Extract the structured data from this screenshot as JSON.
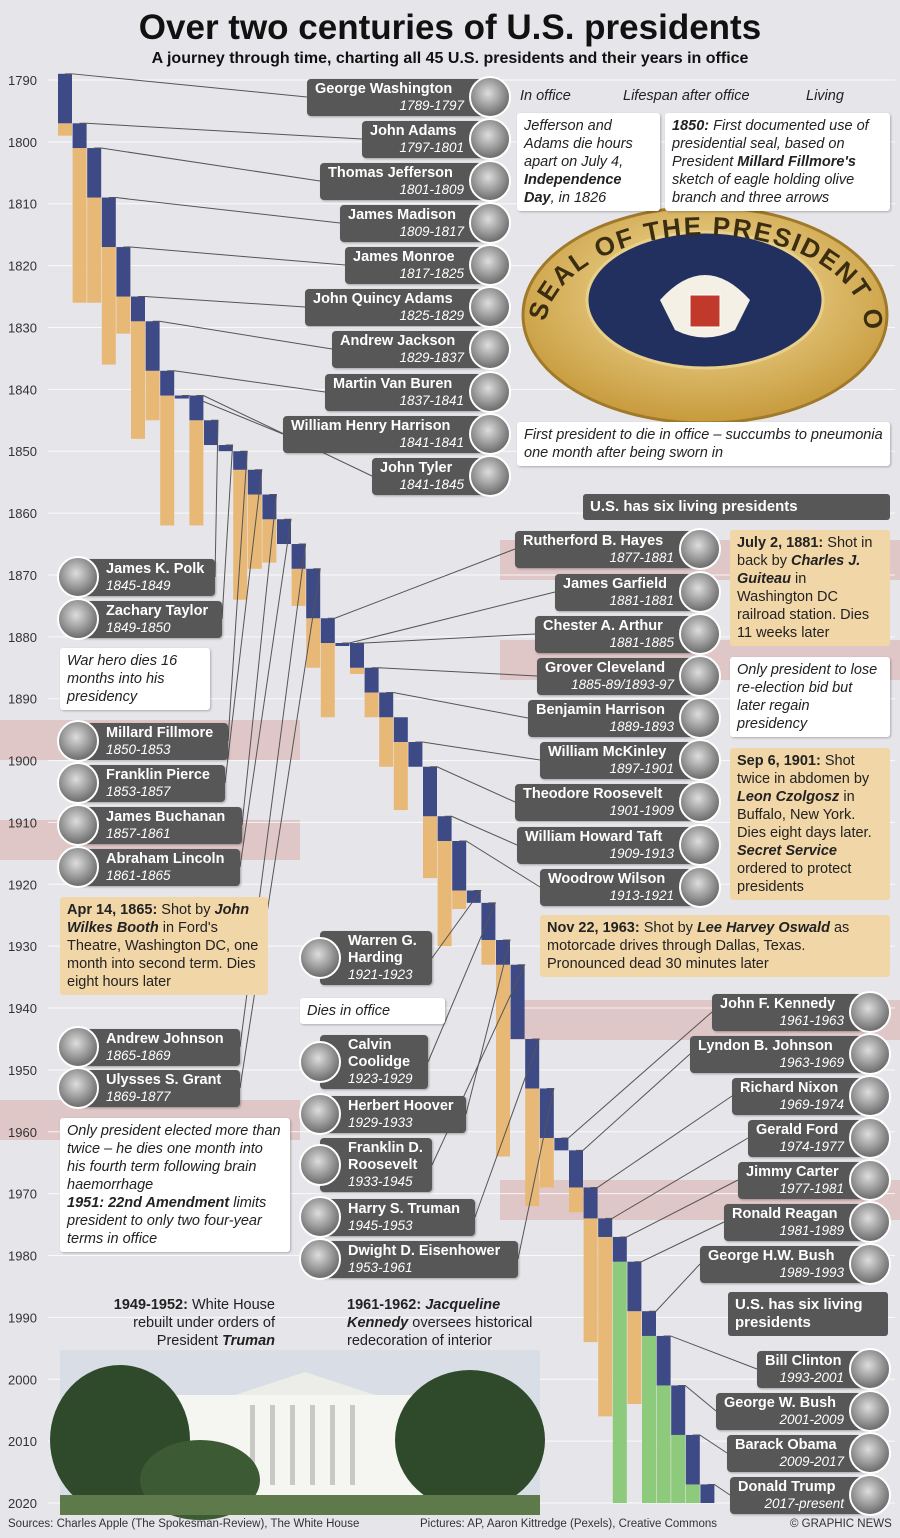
{
  "title": "Over two centuries of U.S. presidents",
  "subtitle": "A journey through time, charting all 45 U.S. presidents and their years in office",
  "legend": [
    {
      "label": "In office",
      "color": "#3d4a85"
    },
    {
      "label": "Lifespan after office",
      "color": "#e8b877"
    },
    {
      "label": "Living",
      "color": "#8dca7c"
    }
  ],
  "axis": {
    "lim": [
      1790,
      2020
    ],
    "ticks": [
      1790,
      1800,
      1810,
      1820,
      1830,
      1840,
      1850,
      1860,
      1870,
      1880,
      1890,
      1900,
      1910,
      1920,
      1930,
      1940,
      1950,
      1960,
      1970,
      1980,
      1990,
      2000,
      2010,
      2020
    ]
  },
  "seal": "SEAL OF THE PRESIDENT OF THE UNITED STATES",
  "presidents": [
    {
      "name": "George Washington",
      "term": "1789-1797",
      "terms": [
        [
          1789,
          1797
        ]
      ],
      "died": 1799
    },
    {
      "name": "John Adams",
      "term": "1797-1801",
      "terms": [
        [
          1797,
          1801
        ]
      ],
      "died": 1826
    },
    {
      "name": "Thomas Jefferson",
      "term": "1801-1809",
      "terms": [
        [
          1801,
          1809
        ]
      ],
      "died": 1826
    },
    {
      "name": "James Madison",
      "term": "1809-1817",
      "terms": [
        [
          1809,
          1817
        ]
      ],
      "died": 1836
    },
    {
      "name": "James Monroe",
      "term": "1817-1825",
      "terms": [
        [
          1817,
          1825
        ]
      ],
      "died": 1831
    },
    {
      "name": "John Quincy Adams",
      "term": "1825-1829",
      "terms": [
        [
          1825,
          1829
        ]
      ],
      "died": 1848
    },
    {
      "name": "Andrew Jackson",
      "term": "1829-1837",
      "terms": [
        [
          1829,
          1837
        ]
      ],
      "died": 1845
    },
    {
      "name": "Martin Van Buren",
      "term": "1837-1841",
      "terms": [
        [
          1837,
          1841
        ]
      ],
      "died": 1862
    },
    {
      "name": "William Henry Harrison",
      "term": "1841-1841",
      "terms": [
        [
          1841,
          1841
        ]
      ],
      "died": 1841
    },
    {
      "name": "John Tyler",
      "term": "1841-1845",
      "terms": [
        [
          1841,
          1845
        ]
      ],
      "died": 1862
    },
    {
      "name": "James K. Polk",
      "term": "1845-1849",
      "terms": [
        [
          1845,
          1849
        ]
      ],
      "died": 1849
    },
    {
      "name": "Zachary Taylor",
      "term": "1849-1850",
      "terms": [
        [
          1849,
          1850
        ]
      ],
      "died": 1850
    },
    {
      "name": "Millard Fillmore",
      "term": "1850-1853",
      "terms": [
        [
          1850,
          1853
        ]
      ],
      "died": 1874
    },
    {
      "name": "Franklin Pierce",
      "term": "1853-1857",
      "terms": [
        [
          1853,
          1857
        ]
      ],
      "died": 1869
    },
    {
      "name": "James Buchanan",
      "term": "1857-1861",
      "terms": [
        [
          1857,
          1861
        ]
      ],
      "died": 1868
    },
    {
      "name": "Abraham Lincoln",
      "term": "1861-1865",
      "terms": [
        [
          1861,
          1865
        ]
      ],
      "died": 1865
    },
    {
      "name": "Andrew Johnson",
      "term": "1865-1869",
      "terms": [
        [
          1865,
          1869
        ]
      ],
      "died": 1875
    },
    {
      "name": "Ulysses S. Grant",
      "term": "1869-1877",
      "terms": [
        [
          1869,
          1877
        ]
      ],
      "died": 1885
    },
    {
      "name": "Rutherford B. Hayes",
      "term": "1877-1881",
      "terms": [
        [
          1877,
          1881
        ]
      ],
      "died": 1893
    },
    {
      "name": "James Garfield",
      "term": "1881-1881",
      "terms": [
        [
          1881,
          1881
        ]
      ],
      "died": 1881
    },
    {
      "name": "Chester A. Arthur",
      "term": "1881-1885",
      "terms": [
        [
          1881,
          1885
        ]
      ],
      "died": 1886
    },
    {
      "name": "Grover Cleveland",
      "term": "1885-89/1893-97",
      "terms": [
        [
          1885,
          1889
        ],
        [
          1893,
          1897
        ]
      ],
      "died": 1908
    },
    {
      "name": "Benjamin Harrison",
      "term": "1889-1893",
      "terms": [
        [
          1889,
          1893
        ]
      ],
      "died": 1901
    },
    {
      "name": "William McKinley",
      "term": "1897-1901",
      "terms": [
        [
          1897,
          1901
        ]
      ],
      "died": 1901
    },
    {
      "name": "Theodore Roosevelt",
      "term": "1901-1909",
      "terms": [
        [
          1901,
          1909
        ]
      ],
      "died": 1919
    },
    {
      "name": "William Howard Taft",
      "term": "1909-1913",
      "terms": [
        [
          1909,
          1913
        ]
      ],
      "died": 1930
    },
    {
      "name": "Woodrow Wilson",
      "term": "1913-1921",
      "terms": [
        [
          1913,
          1921
        ]
      ],
      "died": 1924
    },
    {
      "name": "Warren G. Harding",
      "term": "1921-1923",
      "terms": [
        [
          1921,
          1923
        ]
      ],
      "died": 1923
    },
    {
      "name": "Calvin Coolidge",
      "term": "1923-1929",
      "terms": [
        [
          1923,
          1929
        ]
      ],
      "died": 1933
    },
    {
      "name": "Herbert Hoover",
      "term": "1929-1933",
      "terms": [
        [
          1929,
          1933
        ]
      ],
      "died": 1964
    },
    {
      "name": "Franklin D. Roosevelt",
      "term": "1933-1945",
      "terms": [
        [
          1933,
          1945
        ]
      ],
      "died": 1945
    },
    {
      "name": "Harry S. Truman",
      "term": "1945-1953",
      "terms": [
        [
          1945,
          1953
        ]
      ],
      "died": 1972
    },
    {
      "name": "Dwight D. Eisenhower",
      "term": "1953-1961",
      "terms": [
        [
          1953,
          1961
        ]
      ],
      "died": 1969
    },
    {
      "name": "John F. Kennedy",
      "term": "1961-1963",
      "terms": [
        [
          1961,
          1963
        ]
      ],
      "died": 1963
    },
    {
      "name": "Lyndon B. Johnson",
      "term": "1963-1969",
      "terms": [
        [
          1963,
          1969
        ]
      ],
      "died": 1973
    },
    {
      "name": "Richard Nixon",
      "term": "1969-1974",
      "terms": [
        [
          1969,
          1974
        ]
      ],
      "died": 1994
    },
    {
      "name": "Gerald Ford",
      "term": "1974-1977",
      "terms": [
        [
          1974,
          1977
        ]
      ],
      "died": 2006
    },
    {
      "name": "Jimmy Carter",
      "term": "1977-1981",
      "terms": [
        [
          1977,
          1981
        ]
      ],
      "died": null
    },
    {
      "name": "Ronald Reagan",
      "term": "1981-1989",
      "terms": [
        [
          1981,
          1989
        ]
      ],
      "died": 2004
    },
    {
      "name": "George H.W. Bush",
      "term": "1989-1993",
      "terms": [
        [
          1989,
          1993
        ]
      ],
      "died": null
    },
    {
      "name": "Bill Clinton",
      "term": "1993-2001",
      "terms": [
        [
          1993,
          2001
        ]
      ],
      "died": null
    },
    {
      "name": "George W. Bush",
      "term": "2001-2009",
      "terms": [
        [
          2001,
          2009
        ]
      ],
      "died": null
    },
    {
      "name": "Barack Obama",
      "term": "2009-2017",
      "terms": [
        [
          2009,
          2017
        ]
      ],
      "died": null
    },
    {
      "name": "Donald Trump",
      "term": "2017-present",
      "terms": [
        [
          2017,
          null
        ]
      ],
      "died": null
    }
  ],
  "notes": [
    {
      "kind": "white",
      "paragraphs": [
        [
          {
            "text": "Jefferson and Adams die hours apart on July 4, ",
            "style": "i"
          },
          {
            "text": "Independence Day",
            "style": "bi"
          },
          {
            "text": ", in 1826",
            "style": "i"
          }
        ]
      ]
    },
    {
      "kind": "white",
      "paragraphs": [
        [
          {
            "text": "1850:",
            "style": "bi"
          },
          {
            "text": " First documented use of presidential seal, based on President ",
            "style": "i"
          },
          {
            "text": "Millard Fillmore's",
            "style": "bi"
          },
          {
            "text": " sketch of eagle holding olive branch and three arrows",
            "style": "i"
          }
        ]
      ]
    },
    {
      "kind": "white",
      "paragraphs": [
        [
          {
            "text": "First president to die in office – succumbs to pneumonia one month after being sworn in",
            "style": "i"
          }
        ]
      ]
    },
    {
      "kind": "dark",
      "paragraphs": [
        [
          {
            "text": "U.S. has six living presidents",
            "style": ""
          }
        ]
      ]
    },
    {
      "kind": "tan",
      "paragraphs": [
        [
          {
            "text": "July 2, 1881:",
            "style": "b"
          },
          {
            "text": " Shot in back by ",
            "style": ""
          },
          {
            "text": "Charles J. Guiteau",
            "style": "bi"
          },
          {
            "text": " in Washington DC railroad station. Dies 11 weeks later",
            "style": ""
          }
        ]
      ]
    },
    {
      "kind": "white",
      "paragraphs": [
        [
          {
            "text": "Only president to lose re-election bid but later regain presidency",
            "style": "i"
          }
        ]
      ]
    },
    {
      "kind": "tan",
      "paragraphs": [
        [
          {
            "text": "Sep 6, 1901:",
            "style": "b"
          },
          {
            "text": " Shot twice in abdomen by ",
            "style": ""
          },
          {
            "text": "Leon Czolgosz",
            "style": "bi"
          },
          {
            "text": " in Buffalo, New York. Dies eight days later. ",
            "style": ""
          },
          {
            "text": "Secret Service",
            "style": "bi"
          },
          {
            "text": " ordered to protect presidents",
            "style": ""
          }
        ]
      ]
    },
    {
      "kind": "white",
      "paragraphs": [
        [
          {
            "text": "War hero dies 16 months into his presidency",
            "style": "i"
          }
        ]
      ]
    },
    {
      "kind": "tan",
      "paragraphs": [
        [
          {
            "text": "Apr 14, 1865:",
            "style": "b"
          },
          {
            "text": " Shot by ",
            "style": ""
          },
          {
            "text": "John Wilkes Booth",
            "style": "bi"
          },
          {
            "text": " in Ford's Theatre, Washington DC, one month into second term. Dies eight hours later",
            "style": ""
          }
        ]
      ]
    },
    {
      "kind": "tan",
      "paragraphs": [
        [
          {
            "text": "Nov 22, 1963:",
            "style": "b"
          },
          {
            "text": " Shot by ",
            "style": ""
          },
          {
            "text": "Lee Harvey Oswald",
            "style": "bi"
          },
          {
            "text": " as motorcade drives through Dallas, Texas. Pronounced dead 30 minutes later",
            "style": ""
          }
        ]
      ]
    },
    {
      "kind": "white",
      "paragraphs": [
        [
          {
            "text": "Dies in office",
            "style": "i"
          }
        ]
      ]
    },
    {
      "kind": "white",
      "paragraphs": [
        [
          {
            "text": "Only president elected more than twice – he dies one month into his fourth term following brain haemorrhage",
            "style": "i"
          }
        ],
        [
          {
            "text": "1951: 22nd Amendment",
            "style": "bi"
          },
          {
            "text": " limits president to only two four-year terms in office",
            "style": "i"
          }
        ]
      ]
    },
    {
      "kind": "dark",
      "paragraphs": [
        [
          {
            "text": "U.S. has six living presidents",
            "style": ""
          }
        ]
      ]
    },
    {
      "kind": "plain",
      "paragraphs": [
        [
          {
            "text": "1949-1952:",
            "style": "b"
          },
          {
            "text": " White House rebuilt under orders of President ",
            "style": ""
          },
          {
            "text": "Truman",
            "style": "bi"
          }
        ]
      ]
    },
    {
      "kind": "plain",
      "paragraphs": [
        [
          {
            "text": "1961-1962:",
            "style": "b"
          },
          {
            "text": " ",
            "style": ""
          },
          {
            "text": "Jacqueline Kennedy",
            "style": "bi"
          },
          {
            "text": " oversees historical redecoration of interior",
            "style": ""
          }
        ]
      ]
    }
  ],
  "footer": {
    "sources": "Sources: Charles Apple (The Spokesman-Review), The White House",
    "pictures": "Pictures: AP, Aaron Kittredge (Pexels), Creative Commons",
    "credit": "© GRAPHIC NEWS"
  }
}
